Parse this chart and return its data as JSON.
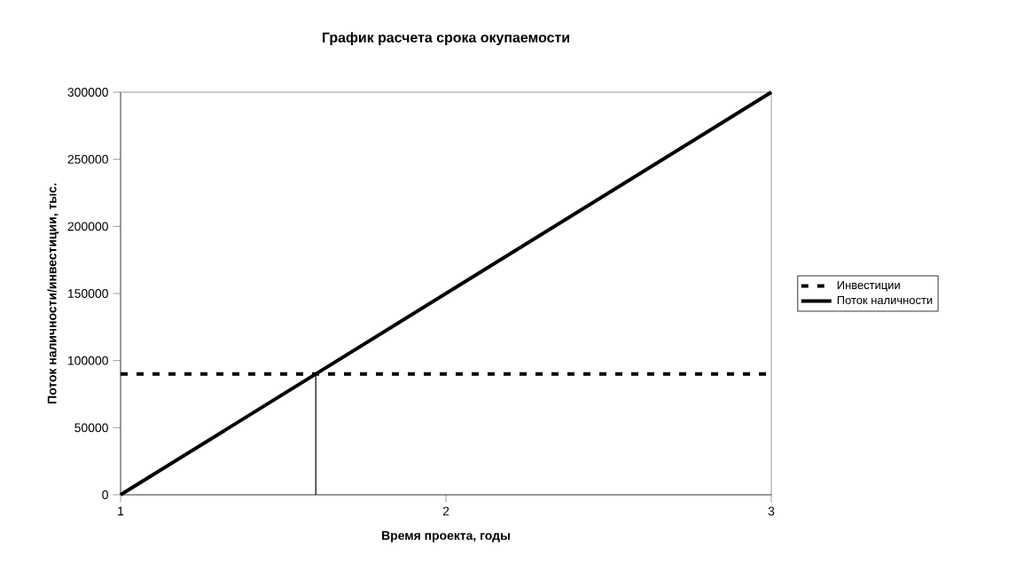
{
  "chart_data": {
    "type": "line",
    "title": "График расчета срока окупаемости",
    "xlabel": "Время проекта, годы",
    "ylabel": "Поток наличности/инвестиции, тыс.",
    "xlim": [
      1,
      3
    ],
    "xticks": [
      1,
      2,
      3
    ],
    "ylim": [
      0,
      300000
    ],
    "yticks": [
      0,
      50000,
      100000,
      150000,
      200000,
      250000,
      300000
    ],
    "series": [
      {
        "name": "Инвестиции",
        "color": "#000000",
        "line_style": "dashed",
        "x": [
          1,
          3
        ],
        "values": [
          90000,
          90000
        ]
      },
      {
        "name": "Поток наличности",
        "color": "#000000",
        "line_style": "solid",
        "x": [
          1,
          3
        ],
        "values": [
          0,
          300000
        ]
      },
      {
        "color": "#000000",
        "line_style": "solid",
        "x": [
          1.6,
          1.6
        ],
        "values": [
          0,
          90000
        ]
      }
    ],
    "legend": "right",
    "grid": false,
    "marker": "none"
  }
}
